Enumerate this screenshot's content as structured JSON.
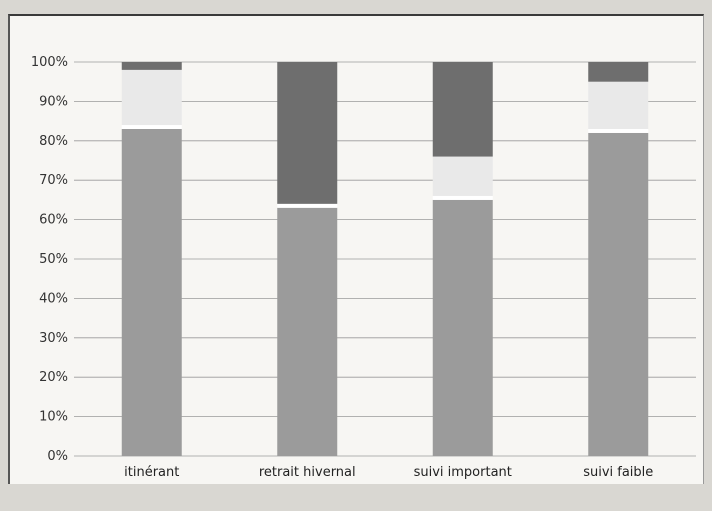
{
  "chart_data": {
    "type": "bar",
    "stacked": true,
    "categories": [
      "itinérant",
      "retrait hivernal",
      "suivi important",
      "suivi faible"
    ],
    "series": [
      {
        "values": [
          83,
          63,
          65,
          82
        ],
        "color": "#9b9b9b"
      },
      {
        "values": [
          1,
          1,
          1,
          1
        ],
        "color": "#ffffff"
      },
      {
        "values": [
          14,
          0,
          10,
          12
        ],
        "color": "#e9e9e9"
      },
      {
        "values": [
          2,
          36,
          24,
          5
        ],
        "color": "#6e6e6e"
      }
    ],
    "yticks": [
      "0%",
      "10%",
      "20%",
      "30%",
      "40%",
      "50%",
      "60%",
      "70%",
      "80%",
      "90%",
      "100%"
    ],
    "ylim": [
      0,
      100
    ],
    "grid": true,
    "legend": "none"
  }
}
